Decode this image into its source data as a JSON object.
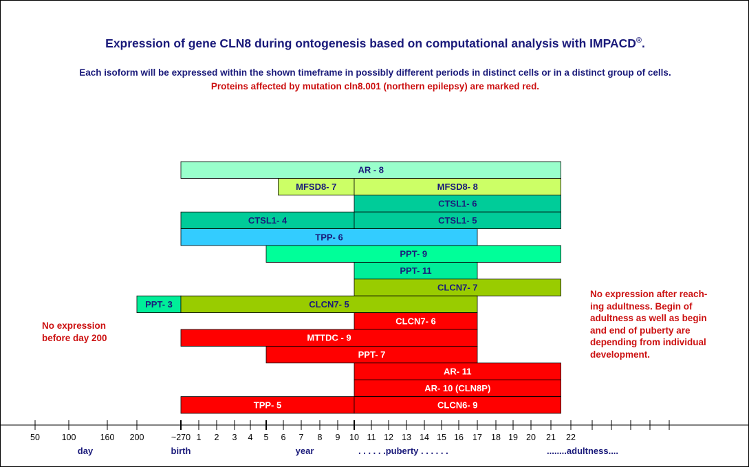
{
  "title": "Expression of gene CLN8 during ontogenesis based on computational analysis with IMPACD",
  "title_mark": "®",
  "title_end": ".",
  "subtitle_line1": "Each isoform will be expressed within the shown timeframe in possibly different periods in distinct cells or in a distinct group of cells.",
  "subtitle_line2": "Proteins affected by mutation cln8.001 (northern epilepsy) are marked red.",
  "note_left": "No expression\nbefore day 200",
  "note_right": "No expression after reach-\ning adultness. Begin of\nadultness as well as begin\nand end of puberty are\ndepending from individual\ndevelopment.",
  "colors": {
    "title": "#1a1a7a",
    "affected": "#ff0000",
    "light_green": "#99ffcc",
    "lime": "#ccff66",
    "teal": "#00cc99",
    "sky": "#33ccff",
    "mint": "#00ff99",
    "olive": "#99cc00",
    "aqua": "#00ee99"
  },
  "chart_data": {
    "type": "timeline",
    "axis_ticks": [
      "50",
      "100",
      "160",
      "200",
      "~270",
      "1",
      "2",
      "3",
      "4",
      "5",
      "6",
      "7",
      "8",
      "9",
      "10",
      "11",
      "12",
      "13",
      "14",
      "15",
      "16",
      "17",
      "18",
      "19",
      "20",
      "21",
      "22",
      "",
      "",
      "",
      "",
      ""
    ],
    "axis_words": [
      {
        "text": "day",
        "at": "100"
      },
      {
        "text": "birth",
        "at": "~270"
      },
      {
        "text": "year",
        "at": "7"
      },
      {
        "text": ". . . . . .puberty . . . . . .",
        "at": "13"
      },
      {
        "text": "........adultness....",
        "at": "22"
      }
    ],
    "bars": [
      {
        "label": "AR - 8",
        "start": "~270",
        "end": "21.5",
        "row": 0,
        "color": "#99ffcc",
        "affected": false
      },
      {
        "label": "MFSD8- 7",
        "start": "5.7",
        "end": "10",
        "row": 1,
        "color": "#ccff66",
        "affected": false
      },
      {
        "label": "MFSD8- 8",
        "start": "10",
        "end": "21.5",
        "row": 1,
        "color": "#ccff66",
        "affected": false
      },
      {
        "label": "CTSL1- 6",
        "start": "10",
        "end": "21.5",
        "row": 2,
        "color": "#00cc99",
        "affected": false
      },
      {
        "label": "CTSL1- 4",
        "start": "~270",
        "end": "10",
        "row": 3,
        "color": "#00cc99",
        "affected": false
      },
      {
        "label": "CTSL1- 5",
        "start": "10",
        "end": "21.5",
        "row": 3,
        "color": "#00cc99",
        "affected": false
      },
      {
        "label": "TPP- 6",
        "start": "~270",
        "end": "17",
        "row": 4,
        "color": "#33ccff",
        "affected": false
      },
      {
        "label": "PPT- 9",
        "start": "5",
        "end": "21.5",
        "row": 5,
        "color": "#00ff99",
        "affected": false
      },
      {
        "label": "PPT- 11",
        "start": "10",
        "end": "17",
        "row": 6,
        "color": "#00ee99",
        "affected": false
      },
      {
        "label": "CLCN7- 7",
        "start": "10",
        "end": "21.5",
        "row": 7,
        "color": "#99cc00",
        "affected": false
      },
      {
        "label": "PPT- 3",
        "start": "200",
        "end": "~270",
        "row": 8,
        "color": "#00ee99",
        "affected": false
      },
      {
        "label": "CLCN7- 5",
        "start": "~270",
        "end": "17",
        "row": 8,
        "color": "#99cc00",
        "affected": false
      },
      {
        "label": "CLCN7- 6",
        "start": "10",
        "end": "17",
        "row": 9,
        "color": "#ff0000",
        "affected": true
      },
      {
        "label": "MTTDC - 9",
        "start": "~270",
        "end": "17",
        "row": 10,
        "color": "#ff0000",
        "affected": true
      },
      {
        "label": "PPT- 7",
        "start": "5",
        "end": "17",
        "row": 11,
        "color": "#ff0000",
        "affected": true
      },
      {
        "label": "AR- 11",
        "start": "10",
        "end": "21.5",
        "row": 12,
        "color": "#ff0000",
        "affected": true
      },
      {
        "label": "AR- 10 (CLN8P)",
        "start": "10",
        "end": "21.5",
        "row": 13,
        "color": "#ff0000",
        "affected": true
      },
      {
        "label": "TPP- 5",
        "start": "~270",
        "end": "10",
        "row": 14,
        "color": "#ff0000",
        "affected": true
      },
      {
        "label": "CLCN6- 9",
        "start": "10",
        "end": "21.5",
        "row": 14,
        "color": "#ff0000",
        "affected": true
      }
    ]
  }
}
